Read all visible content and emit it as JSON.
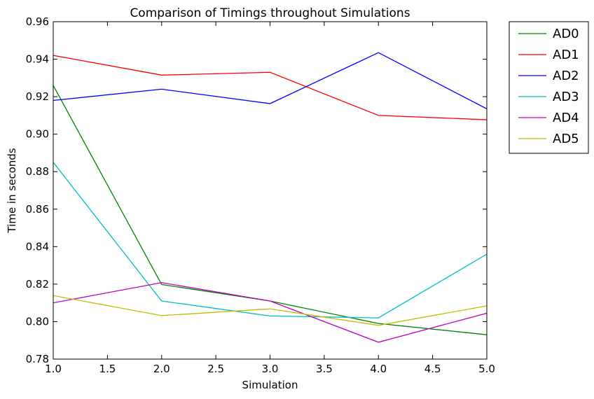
{
  "chart_data": {
    "type": "line",
    "title": "Comparison of Timings throughout Simulations",
    "xlabel": "Simulation",
    "ylabel": "Time in seconds",
    "xlim": [
      1.0,
      5.0
    ],
    "ylim": [
      0.78,
      0.96
    ],
    "xticks": [
      "1.0",
      "1.5",
      "2.0",
      "2.5",
      "3.0",
      "3.5",
      "4.0",
      "4.5",
      "5.0"
    ],
    "yticks": [
      "0.78",
      "0.80",
      "0.82",
      "0.84",
      "0.86",
      "0.88",
      "0.90",
      "0.92",
      "0.94",
      "0.96"
    ],
    "grid": false,
    "legend_position": "outside-top-right",
    "x": [
      1,
      2,
      3,
      4,
      5
    ],
    "series": [
      {
        "name": "AD0",
        "color": "#008000",
        "values": [
          0.926,
          0.8198,
          0.811,
          0.799,
          0.793
        ]
      },
      {
        "name": "AD1",
        "color": "#ff0000",
        "values": [
          0.942,
          0.9315,
          0.933,
          0.91,
          0.9077
        ]
      },
      {
        "name": "AD2",
        "color": "#0000ff",
        "values": [
          0.918,
          0.924,
          0.9163,
          0.9435,
          0.9135
        ]
      },
      {
        "name": "AD3",
        "color": "#00bfbf",
        "values": [
          0.885,
          0.811,
          0.803,
          0.802,
          0.836
        ]
      },
      {
        "name": "AD4",
        "color": "#bf00bf",
        "values": [
          0.81,
          0.8208,
          0.811,
          0.789,
          0.8045
        ]
      },
      {
        "name": "AD5",
        "color": "#bfbf00",
        "values": [
          0.8139,
          0.8032,
          0.8068,
          0.798,
          0.8084
        ]
      }
    ]
  }
}
